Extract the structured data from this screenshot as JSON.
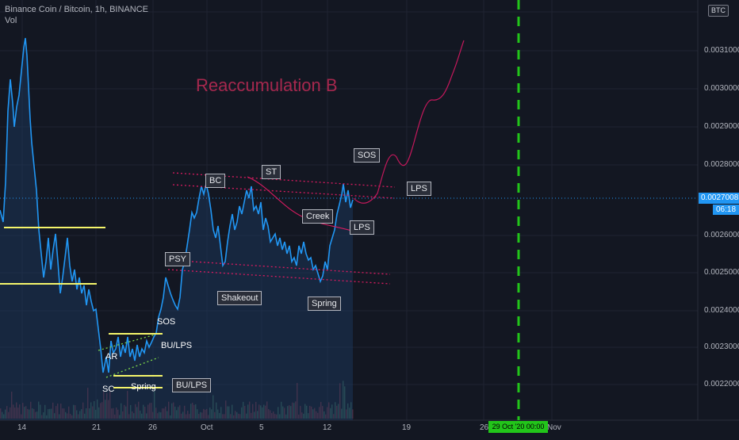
{
  "header": {
    "symbol_title": "Binance Coin / Bitcoin, 1h, BINANCE",
    "indicator": "Vol"
  },
  "currency_badge": "BTC",
  "y_axis_ticks": [
    "0.0031000",
    "0.0030000",
    "0.0029000",
    "0.0028000",
    "0.0027008",
    "0.0026000",
    "0.0025000",
    "0.0024000",
    "0.0023000",
    "0.0022000"
  ],
  "x_axis_ticks": [
    "14",
    "21",
    "26",
    "Oct",
    "5",
    "12",
    "19",
    "26",
    "Nov"
  ],
  "current_price": "0.0027008",
  "countdown": "06:18",
  "crosshair_date": "29 Oct '20   00:00",
  "title_annotation": "Reaccumulation B",
  "annotations": {
    "sos_top": "SOS",
    "lps_top": "LPS",
    "bc": "BC",
    "st": "ST",
    "creek": "Creek",
    "lps_mid": "LPS",
    "psy": "PSY",
    "shakeout": "Shakeout",
    "spring_right": "Spring",
    "sos_left": "SOS",
    "bu_lps_left": "BU/LPS",
    "ar": "AR",
    "sc": "SC",
    "spring_left": "Spring",
    "bu_lps_box": "BU/LPS"
  },
  "colors": {
    "background": "#131722",
    "price_line": "#2196f3",
    "support_lines": "#f5f56a",
    "channel_lines": "#d81b60",
    "projection": "#c2185b",
    "crosshair": "#22c51a"
  }
}
